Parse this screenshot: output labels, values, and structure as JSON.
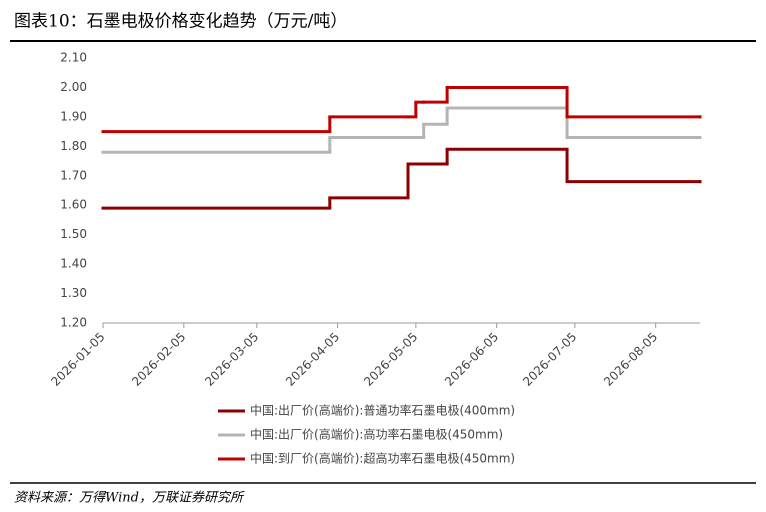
{
  "header": {
    "title": "图表10：石墨电极价格变化趋势（万元/吨）"
  },
  "chart_data": {
    "type": "line",
    "step": "post",
    "x": [
      "2026-01-05",
      "2026-04-02",
      "2026-05-02",
      "2026-05-05",
      "2026-05-08",
      "2026-05-17",
      "2026-07-02",
      "2026-08-22"
    ],
    "series": [
      {
        "name": "中国:出厂价(高端价):普通功率石墨电极(400mm)",
        "color": "#8b0000",
        "values": [
          1.59,
          1.625,
          1.74,
          1.74,
          1.74,
          1.79,
          1.68,
          1.68
        ]
      },
      {
        "name": "中国:出厂价(高端价):高功率石墨电极(450mm)",
        "color": "#b4b4b4",
        "values": [
          1.78,
          1.83,
          1.83,
          1.83,
          1.875,
          1.93,
          1.83,
          1.83
        ]
      },
      {
        "name": "中国:到厂价(高端价):超高功率石墨电极(450mm)",
        "color": "#c00000",
        "values": [
          1.85,
          1.9,
          1.9,
          1.95,
          1.95,
          2.0,
          1.9,
          1.9
        ]
      }
    ],
    "xlim": [
      "2026-01-05",
      "2026-08-22"
    ],
    "xticks": [
      "2026-01-05",
      "2026-02-05",
      "2026-03-05",
      "2026-04-05",
      "2026-05-05",
      "2026-06-05",
      "2026-07-05",
      "2026-08-05"
    ],
    "ylim": [
      1.2,
      2.1
    ],
    "yticks": [
      {
        "value": 1.2,
        "label": "1.20"
      },
      {
        "value": 1.3,
        "label": "1.30"
      },
      {
        "value": 1.4,
        "label": "1.40"
      },
      {
        "value": 1.5,
        "label": "1.50"
      },
      {
        "value": 1.6,
        "label": "1.60"
      },
      {
        "value": 1.7,
        "label": "1.70"
      },
      {
        "value": 1.8,
        "label": "1.80"
      },
      {
        "value": 1.9,
        "label": "1.90"
      },
      {
        "value": 2.0,
        "label": "2.00"
      },
      {
        "value": 2.1,
        "label": "2.10"
      }
    ],
    "grid": false,
    "legend": "bottom"
  },
  "footer": {
    "source": "资料来源：万得Wind，万联证券研究所"
  }
}
